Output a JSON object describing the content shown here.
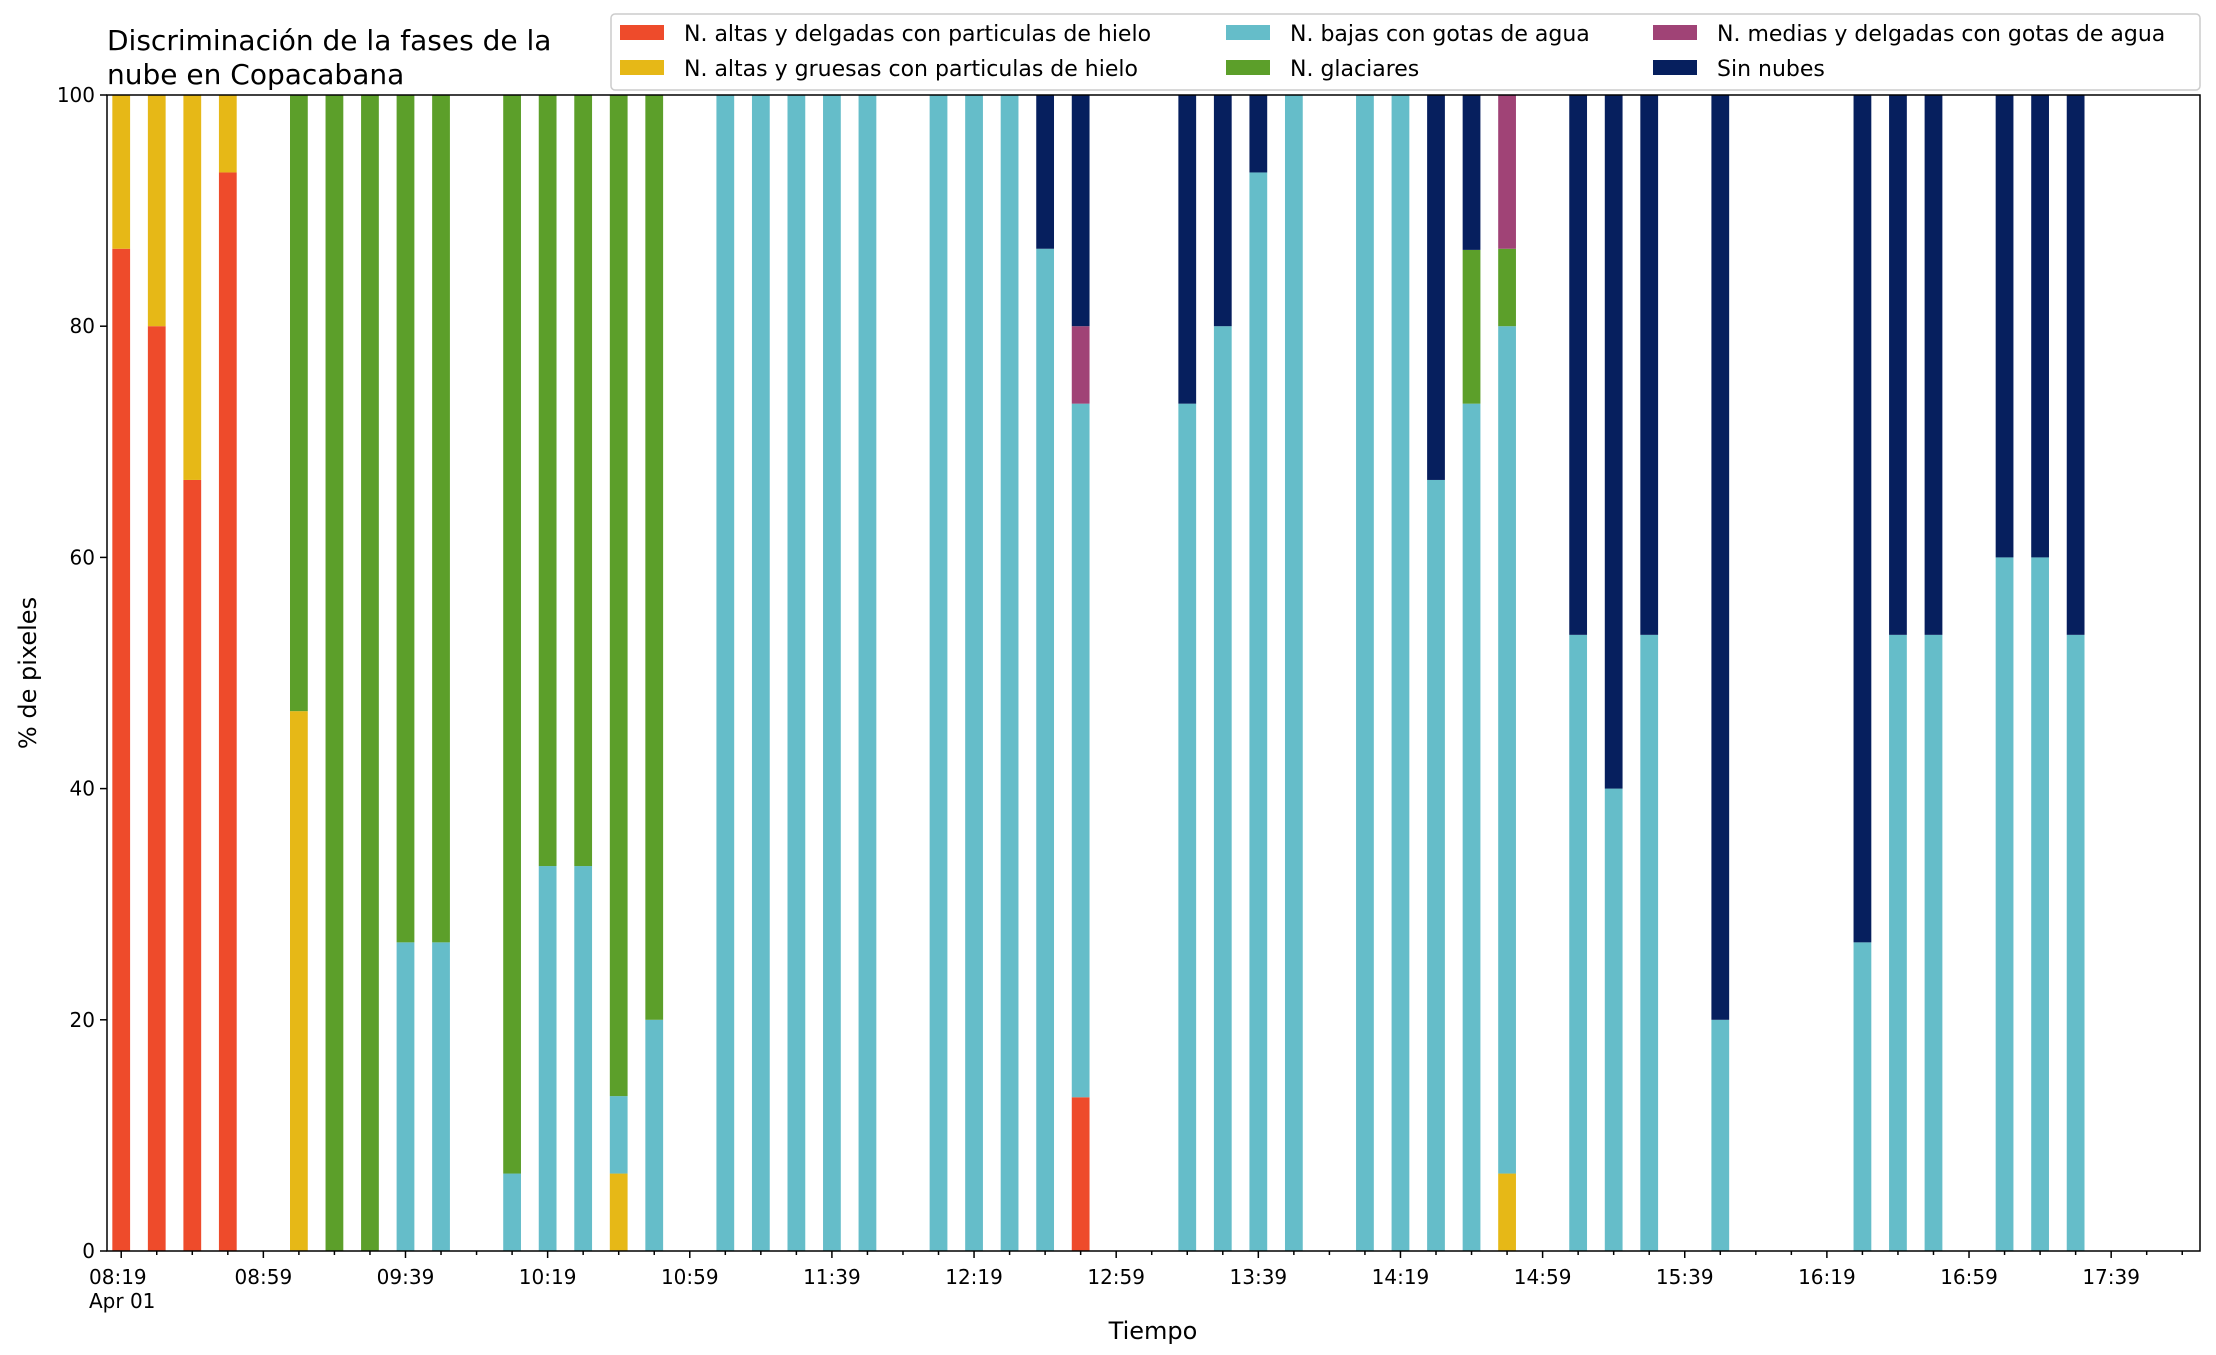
{
  "chart_data": {
    "type": "bar",
    "stacked": true,
    "title": "Discriminación de la fases de la\nnube en Copacabana",
    "title_lines": [
      "Discriminación de la fases de la",
      "nube en Copacabana"
    ],
    "xlabel": "Tiempo",
    "ylabel": "% de pixeles",
    "ylim": [
      0,
      100
    ],
    "y_ticks": [
      0,
      20,
      40,
      60,
      80,
      100
    ],
    "x_date_label": "Apr 01",
    "x_tick_labels": [
      "08:19",
      "08:59",
      "09:39",
      "10:19",
      "10:59",
      "11:39",
      "12:19",
      "12:59",
      "13:39",
      "14:19",
      "14:59",
      "15:39",
      "16:19",
      "16:59",
      "17:39"
    ],
    "x_range": [
      "08:19",
      "17:59"
    ],
    "legend_position": "top-right",
    "legend_columns": 3,
    "grid": false,
    "series": [
      {
        "name": "N. altas y delgadas con particulas de hielo",
        "color": "#EE4B2B"
      },
      {
        "name": "N. altas y gruesas con particulas de hielo",
        "color": "#E6B817"
      },
      {
        "name": "N. bajas con gotas de agua",
        "color": "#65BDC9"
      },
      {
        "name": "N. glaciares",
        "color": "#5C9F2A"
      },
      {
        "name": "N. medias y delgadas con gotas de agua",
        "color": "#A04376"
      },
      {
        "name": "Sin nubes",
        "color": "#061F5E"
      }
    ],
    "bars": [
      {
        "time": "08:19",
        "values": [
          86.7,
          13.3,
          0,
          0,
          0,
          0
        ]
      },
      {
        "time": "08:29",
        "values": [
          80,
          20,
          0,
          0,
          0,
          0
        ]
      },
      {
        "time": "08:39",
        "values": [
          66.7,
          33.3,
          0,
          0,
          0,
          0
        ]
      },
      {
        "time": "08:49",
        "values": [
          93.3,
          6.7,
          0,
          0,
          0,
          0
        ]
      },
      {
        "time": "09:09",
        "values": [
          0,
          46.7,
          0,
          53.3,
          0,
          0
        ]
      },
      {
        "time": "09:19",
        "values": [
          0,
          0,
          0,
          100,
          0,
          0
        ]
      },
      {
        "time": "09:29",
        "values": [
          0,
          0,
          0,
          100,
          0,
          0
        ]
      },
      {
        "time": "09:39",
        "values": [
          0,
          0,
          26.7,
          73.3,
          0,
          0
        ]
      },
      {
        "time": "09:49",
        "values": [
          0,
          0,
          26.7,
          73.3,
          0,
          0
        ]
      },
      {
        "time": "10:09",
        "values": [
          0,
          0,
          6.7,
          93.3,
          0,
          0
        ]
      },
      {
        "time": "10:19",
        "values": [
          0,
          0,
          33.3,
          66.7,
          0,
          0
        ]
      },
      {
        "time": "10:29",
        "values": [
          0,
          0,
          33.3,
          66.7,
          0,
          0
        ]
      },
      {
        "time": "10:39",
        "values": [
          0,
          6.7,
          6.7,
          86.6,
          0,
          0
        ]
      },
      {
        "time": "10:49",
        "values": [
          0,
          0,
          20,
          80,
          0,
          0
        ]
      },
      {
        "time": "11:09",
        "values": [
          0,
          0,
          100,
          0,
          0,
          0
        ]
      },
      {
        "time": "11:19",
        "values": [
          0,
          0,
          100,
          0,
          0,
          0
        ]
      },
      {
        "time": "11:29",
        "values": [
          0,
          0,
          100,
          0,
          0,
          0
        ]
      },
      {
        "time": "11:39",
        "values": [
          0,
          0,
          100,
          0,
          0,
          0
        ]
      },
      {
        "time": "11:49",
        "values": [
          0,
          0,
          100,
          0,
          0,
          0
        ]
      },
      {
        "time": "12:09",
        "values": [
          0,
          0,
          100,
          0,
          0,
          0
        ]
      },
      {
        "time": "12:19",
        "values": [
          0,
          0,
          100,
          0,
          0,
          0
        ]
      },
      {
        "time": "12:29",
        "values": [
          0,
          0,
          100,
          0,
          0,
          0
        ]
      },
      {
        "time": "12:39",
        "values": [
          0,
          0,
          86.7,
          0,
          0,
          13.3
        ]
      },
      {
        "time": "12:49",
        "values": [
          13.3,
          0,
          60,
          0,
          6.7,
          20
        ]
      },
      {
        "time": "13:19",
        "values": [
          0,
          0,
          73.3,
          0,
          0,
          26.7
        ]
      },
      {
        "time": "13:29",
        "values": [
          0,
          0,
          80,
          0,
          0,
          20
        ]
      },
      {
        "time": "13:39",
        "values": [
          0,
          0,
          93.3,
          0,
          0,
          6.7
        ]
      },
      {
        "time": "13:49",
        "values": [
          0,
          0,
          100,
          0,
          0,
          0
        ]
      },
      {
        "time": "14:09",
        "values": [
          0,
          0,
          100,
          0,
          0,
          0
        ]
      },
      {
        "time": "14:19",
        "values": [
          0,
          0,
          100,
          0,
          0,
          0
        ]
      },
      {
        "time": "14:29",
        "values": [
          0,
          0,
          66.7,
          0,
          0,
          33.3
        ]
      },
      {
        "time": "14:39",
        "values": [
          0,
          0,
          73.3,
          13.3,
          0,
          13.4
        ]
      },
      {
        "time": "14:49",
        "values": [
          0,
          6.7,
          73.3,
          6.7,
          13.3,
          0
        ]
      },
      {
        "time": "15:09",
        "values": [
          0,
          0,
          53.3,
          0,
          0,
          46.7
        ]
      },
      {
        "time": "15:19",
        "values": [
          0,
          0,
          40,
          0,
          0,
          60
        ]
      },
      {
        "time": "15:29",
        "values": [
          0,
          0,
          53.3,
          0,
          0,
          46.7
        ]
      },
      {
        "time": "15:49",
        "values": [
          0,
          0,
          20,
          0,
          0,
          80
        ]
      },
      {
        "time": "16:29",
        "values": [
          0,
          0,
          26.7,
          0,
          0,
          73.3
        ]
      },
      {
        "time": "16:39",
        "values": [
          0,
          0,
          53.3,
          0,
          0,
          46.7
        ]
      },
      {
        "time": "16:49",
        "values": [
          0,
          0,
          53.3,
          0,
          0,
          46.7
        ]
      },
      {
        "time": "17:09",
        "values": [
          0,
          0,
          60,
          0,
          0,
          40
        ]
      },
      {
        "time": "17:19",
        "values": [
          0,
          0,
          60,
          0,
          0,
          40
        ]
      },
      {
        "time": "17:29",
        "values": [
          0,
          0,
          53.3,
          0,
          0,
          46.7
        ]
      }
    ]
  }
}
